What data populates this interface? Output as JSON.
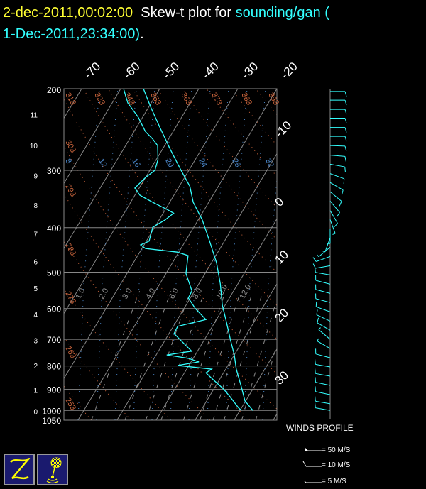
{
  "title": {
    "date": "2-dec-2011,00:02:00",
    "text": "Skew-t plot for",
    "source": "sounding/gan (",
    "source_time": "1-Dec-2011,23:34:00)",
    "end": "."
  },
  "colors": {
    "title_date": "#ffff33",
    "profile": "#33ffff",
    "isotherm": "#888888",
    "dry_adiabat": "#c8643c",
    "moist": "#4a86c8",
    "mixing_ratio": "#909090",
    "icon_bg": "#1a1a6e",
    "icon_fg": "#ffff00"
  },
  "chart_data": {
    "type": "skew-t",
    "pressure_axis": {
      "ticks": [
        200,
        300,
        400,
        500,
        600,
        700,
        800,
        900,
        1000,
        1050
      ],
      "labels": [
        "200",
        "300",
        "400",
        "500",
        "600",
        "700",
        "800",
        "900",
        "1000",
        "1050"
      ],
      "range": [
        1050,
        200
      ],
      "scale": "log"
    },
    "height_axis": {
      "labels": [
        "0",
        "1",
        "2",
        "3",
        "4",
        "5",
        "6",
        "7",
        "8",
        "9",
        "10",
        "11"
      ],
      "pressures": [
        1000,
        899,
        795,
        701,
        616,
        540,
        472,
        411,
        356,
        307,
        264,
        226
      ]
    },
    "isotherm_labels_top": [
      "-70",
      "-60",
      "-50",
      "-40",
      "-30",
      "-20"
    ],
    "isotherm_labels_right": [
      "-10",
      "0",
      "10",
      "20",
      "30"
    ],
    "dry_adiabat_labels": [
      "313",
      "323",
      "333",
      "343",
      "353",
      "363",
      "373",
      "383",
      "393",
      "303",
      "293",
      "283",
      "273",
      "263",
      "253"
    ],
    "moist_labels": [
      "8",
      "12",
      "16",
      "20",
      "24",
      "28",
      "32"
    ],
    "mixing_ratio_labels": [
      "1.0",
      "2.0",
      "3.0",
      "4.0",
      "6.0",
      "8.0",
      "10.0",
      "12.0"
    ],
    "temperature": [
      [
        200,
        -54
      ],
      [
        218,
        -49.6
      ],
      [
        242,
        -44
      ],
      [
        270,
        -38
      ],
      [
        300,
        -32
      ],
      [
        325,
        -27.3
      ],
      [
        352,
        -24
      ],
      [
        385,
        -18.9
      ],
      [
        428,
        -13.8
      ],
      [
        477,
        -8.7
      ],
      [
        530,
        -4.5
      ],
      [
        590,
        -0.7
      ],
      [
        634,
        2.4
      ],
      [
        705,
        6.9
      ],
      [
        757,
        10
      ],
      [
        813,
        12.7
      ],
      [
        888,
        16.7
      ],
      [
        953,
        19.8
      ],
      [
        1000,
        23.3
      ]
    ],
    "dewpoint": [
      [
        200,
        -59.1
      ],
      [
        214,
        -56
      ],
      [
        230,
        -51.1
      ],
      [
        247,
        -47.1
      ],
      [
        256,
        -44.2
      ],
      [
        265,
        -41.8
      ],
      [
        284,
        -39.6
      ],
      [
        300,
        -38.7
      ],
      [
        311,
        -40
      ],
      [
        328,
        -41.1
      ],
      [
        340,
        -38.7
      ],
      [
        352,
        -34.4
      ],
      [
        365,
        -29.6
      ],
      [
        372,
        -27.3
      ],
      [
        385,
        -28.5
      ],
      [
        399,
        -30.5
      ],
      [
        428,
        -29.3
      ],
      [
        436,
        -30.9
      ],
      [
        444,
        -29.1
      ],
      [
        452,
        -20.4
      ],
      [
        460,
        -17.1
      ],
      [
        503,
        -14.9
      ],
      [
        549,
        -10.7
      ],
      [
        569,
        -10.5
      ],
      [
        600,
        -7.1
      ],
      [
        634,
        -2.7
      ],
      [
        656,
        -8.9
      ],
      [
        680,
        -8.7
      ],
      [
        705,
        -5.8
      ],
      [
        743,
        -1.5
      ],
      [
        757,
        -7.3
      ],
      [
        770,
        -1.3
      ],
      [
        784,
        2
      ],
      [
        798,
        -2.9
      ],
      [
        813,
        6.4
      ],
      [
        828,
        5.5
      ],
      [
        857,
        8.4
      ],
      [
        898,
        12.5
      ],
      [
        937,
        15.6
      ],
      [
        988,
        19.3
      ],
      [
        1000,
        20.4
      ]
    ],
    "winds": [
      [
        202,
        10,
        90
      ],
      [
        211,
        10,
        90
      ],
      [
        221,
        10,
        90
      ],
      [
        231,
        10,
        90
      ],
      [
        242,
        10,
        90
      ],
      [
        253,
        10,
        90
      ],
      [
        265,
        10,
        92
      ],
      [
        278,
        10,
        95
      ],
      [
        291,
        10,
        100
      ],
      [
        305,
        10,
        110
      ],
      [
        319,
        10,
        120
      ],
      [
        334,
        10,
        130
      ],
      [
        350,
        10,
        140
      ],
      [
        367,
        10,
        150
      ],
      [
        384,
        8,
        160
      ],
      [
        402,
        5,
        180
      ],
      [
        421,
        5,
        200
      ],
      [
        441,
        8,
        230
      ],
      [
        462,
        10,
        250
      ],
      [
        484,
        10,
        260
      ],
      [
        507,
        10,
        280
      ],
      [
        531,
        10,
        285
      ],
      [
        556,
        10,
        285
      ],
      [
        582,
        10,
        285
      ],
      [
        610,
        10,
        290
      ],
      [
        639,
        10,
        295
      ],
      [
        669,
        10,
        300
      ],
      [
        700,
        8,
        310
      ],
      [
        733,
        8,
        300
      ],
      [
        768,
        10,
        285
      ],
      [
        804,
        10,
        280
      ],
      [
        842,
        10,
        280
      ],
      [
        882,
        10,
        282
      ],
      [
        924,
        10,
        282
      ],
      [
        967,
        10,
        280
      ],
      [
        1000,
        10,
        280
      ]
    ]
  },
  "winds_profile": {
    "title": "WINDS PROFILE",
    "legend": [
      "= 50 M/S",
      "= 10 M/S",
      "= 5 M/S"
    ]
  },
  "icons": [
    "zoom-z-icon",
    "balloon-sounding-icon"
  ]
}
